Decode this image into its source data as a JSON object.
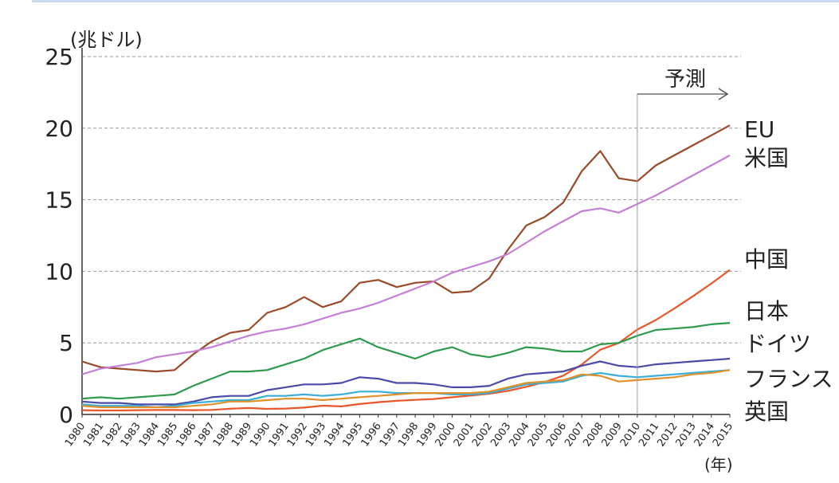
{
  "chart_data": {
    "type": "line",
    "unit_label": "(兆ドル)",
    "x_unit_label": "(年)",
    "forecast_label": "予測",
    "forecast_start": 2010,
    "ylim": [
      0,
      25
    ],
    "yticks": [
      0,
      5,
      10,
      15,
      20,
      25
    ],
    "grid": true,
    "x": [
      1980,
      1981,
      1982,
      1983,
      1984,
      1985,
      1986,
      1987,
      1988,
      1989,
      1990,
      1991,
      1992,
      1993,
      1994,
      1995,
      1996,
      1997,
      1998,
      1999,
      2000,
      2001,
      2002,
      2003,
      2004,
      2005,
      2006,
      2007,
      2008,
      2009,
      2010,
      2011,
      2012,
      2013,
      2014,
      2015
    ],
    "series": [
      {
        "name": "EU",
        "color": "#9a4a28",
        "values": [
          3.7,
          3.3,
          3.2,
          3.1,
          3.0,
          3.1,
          4.2,
          5.1,
          5.7,
          5.9,
          7.1,
          7.5,
          8.2,
          7.5,
          7.9,
          9.2,
          9.4,
          8.9,
          9.2,
          9.3,
          8.5,
          8.6,
          9.5,
          11.5,
          13.2,
          13.8,
          14.8,
          17.0,
          18.4,
          16.5,
          16.3,
          17.4,
          18.1,
          18.8,
          19.5,
          20.2
        ]
      },
      {
        "name": "米国",
        "color": "#c47fd6",
        "values": [
          2.8,
          3.2,
          3.4,
          3.6,
          4.0,
          4.2,
          4.4,
          4.7,
          5.1,
          5.5,
          5.8,
          6.0,
          6.3,
          6.7,
          7.1,
          7.4,
          7.8,
          8.3,
          8.8,
          9.3,
          9.9,
          10.3,
          10.7,
          11.2,
          12.0,
          12.8,
          13.5,
          14.2,
          14.4,
          14.1,
          14.7,
          15.3,
          16.0,
          16.7,
          17.4,
          18.1
        ]
      },
      {
        "name": "中国",
        "color": "#e8562a",
        "values": [
          0.3,
          0.28,
          0.28,
          0.3,
          0.31,
          0.31,
          0.3,
          0.32,
          0.4,
          0.45,
          0.39,
          0.41,
          0.48,
          0.61,
          0.56,
          0.73,
          0.86,
          0.95,
          1.02,
          1.08,
          1.2,
          1.32,
          1.45,
          1.64,
          1.93,
          2.26,
          2.71,
          3.49,
          4.52,
          4.99,
          5.93,
          6.6,
          7.4,
          8.25,
          9.15,
          10.1
        ]
      },
      {
        "name": "日本",
        "color": "#2e9a4c",
        "values": [
          1.1,
          1.2,
          1.1,
          1.2,
          1.3,
          1.4,
          2.0,
          2.5,
          3.0,
          3.0,
          3.1,
          3.5,
          3.9,
          4.5,
          4.9,
          5.3,
          4.7,
          4.3,
          3.9,
          4.4,
          4.7,
          4.2,
          4.0,
          4.3,
          4.7,
          4.6,
          4.4,
          4.4,
          4.9,
          5.0,
          5.5,
          5.9,
          6.0,
          6.1,
          6.3,
          6.4
        ]
      },
      {
        "name": "ドイツ",
        "color": "#4a4aa8",
        "values": [
          0.9,
          0.8,
          0.8,
          0.7,
          0.7,
          0.7,
          0.9,
          1.2,
          1.3,
          1.3,
          1.7,
          1.9,
          2.1,
          2.1,
          2.2,
          2.6,
          2.5,
          2.2,
          2.2,
          2.1,
          1.9,
          1.9,
          2.0,
          2.5,
          2.8,
          2.9,
          3.0,
          3.4,
          3.7,
          3.4,
          3.3,
          3.5,
          3.6,
          3.7,
          3.8,
          3.9
        ]
      },
      {
        "name": "フランス",
        "color": "#3aaed6",
        "values": [
          0.7,
          0.6,
          0.6,
          0.6,
          0.5,
          0.6,
          0.8,
          0.9,
          1.0,
          1.0,
          1.3,
          1.3,
          1.4,
          1.3,
          1.4,
          1.6,
          1.6,
          1.5,
          1.5,
          1.5,
          1.4,
          1.4,
          1.5,
          1.8,
          2.1,
          2.2,
          2.3,
          2.7,
          2.9,
          2.7,
          2.6,
          2.7,
          2.8,
          2.9,
          3.0,
          3.1
        ]
      },
      {
        "name": "英国",
        "color": "#e0922a",
        "values": [
          0.6,
          0.5,
          0.5,
          0.5,
          0.5,
          0.5,
          0.6,
          0.7,
          0.9,
          0.9,
          1.0,
          1.1,
          1.1,
          1.0,
          1.1,
          1.2,
          1.3,
          1.4,
          1.5,
          1.5,
          1.5,
          1.5,
          1.6,
          1.9,
          2.2,
          2.3,
          2.4,
          2.8,
          2.7,
          2.3,
          2.4,
          2.5,
          2.6,
          2.8,
          2.9,
          3.1
        ]
      }
    ]
  }
}
